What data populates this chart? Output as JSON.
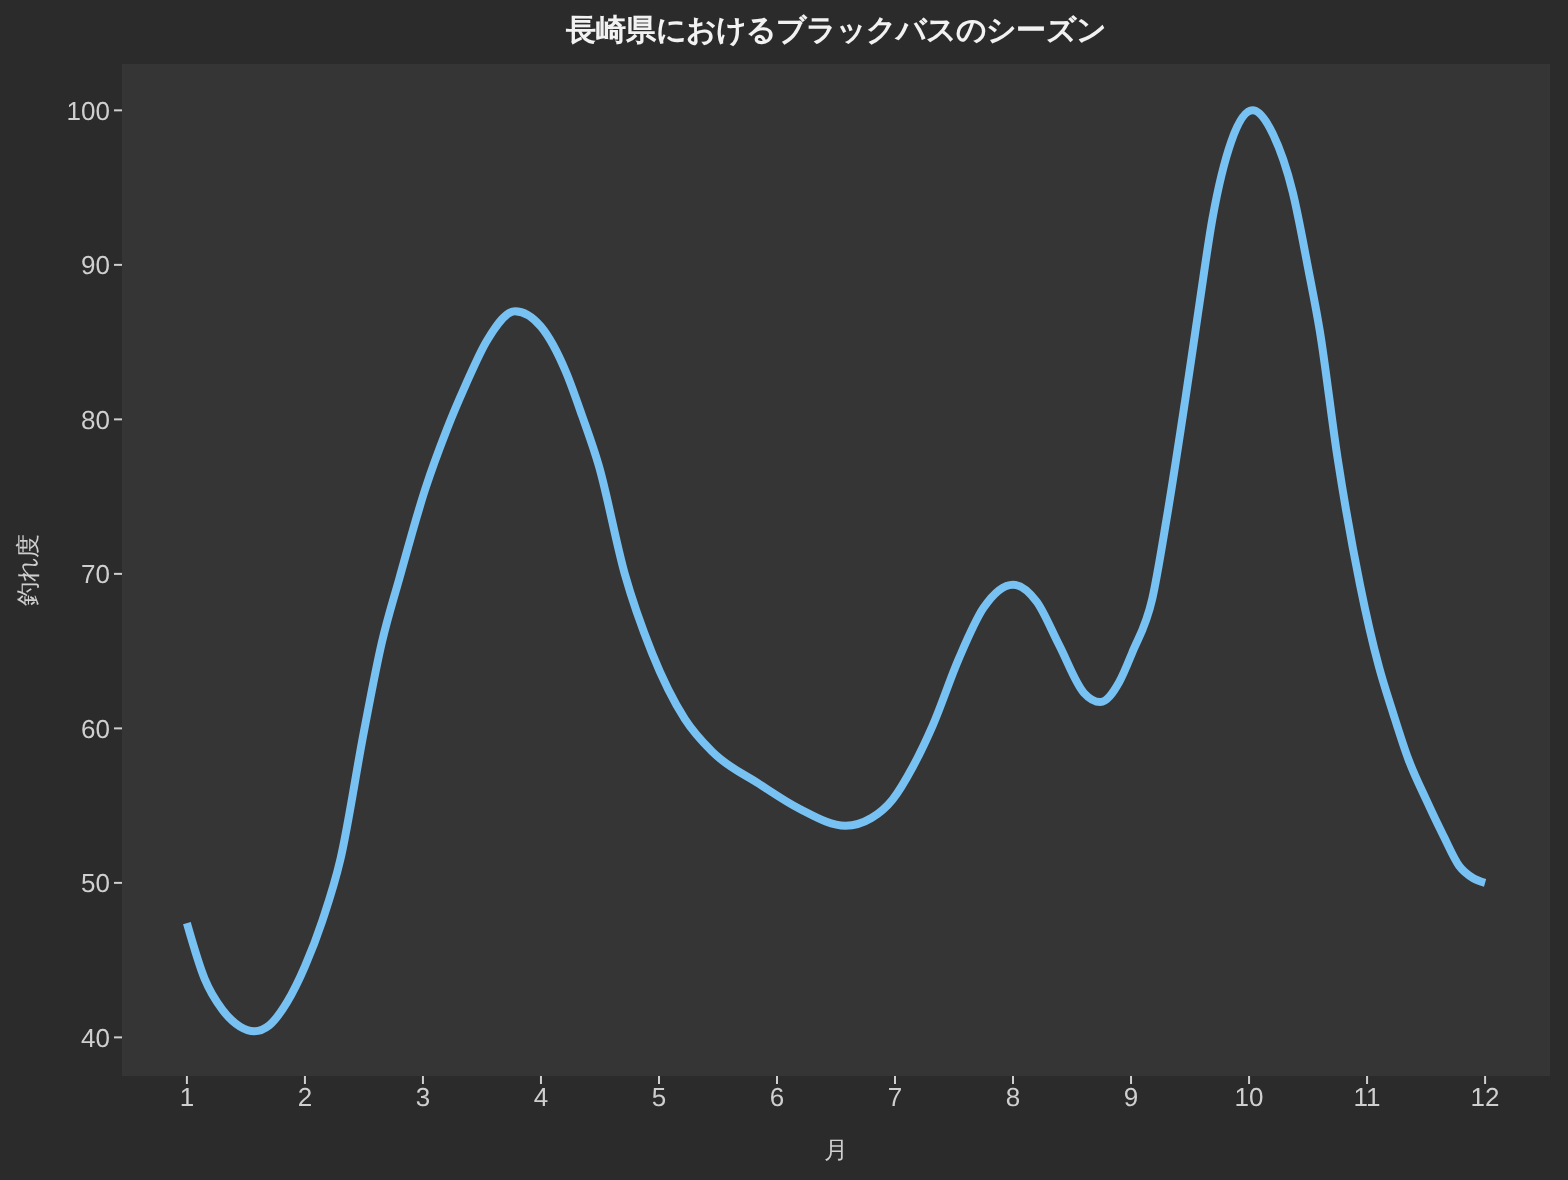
{
  "chart_data": {
    "type": "line",
    "title": "長崎県におけるブラックバスのシーズン",
    "xlabel": "月",
    "ylabel": "釣れ度",
    "x": [
      1.0,
      1.15,
      1.3,
      1.45,
      1.57,
      1.7,
      1.85,
      2.0,
      2.15,
      2.3,
      2.5,
      2.65,
      2.8,
      3.02,
      3.2,
      3.36,
      3.55,
      3.78,
      4.0,
      4.21,
      4.35,
      4.49,
      4.71,
      4.94,
      5.22,
      5.45,
      5.85,
      6.19,
      6.58,
      6.8,
      6.98,
      7.15,
      7.32,
      7.54,
      7.75,
      8.0,
      8.2,
      8.39,
      8.6,
      8.74,
      8.9,
      9.01,
      9.18,
      9.3,
      9.46,
      9.58,
      9.69,
      9.85,
      10.03,
      10.2,
      10.37,
      10.5,
      10.6,
      10.75,
      10.94,
      11.1,
      11.22,
      11.35,
      11.5,
      11.65,
      11.78,
      11.9,
      12.0
    ],
    "series": [
      {
        "color": "#78c1f3",
        "values": [
          47.4,
          43.8,
          41.8,
          40.7,
          40.4,
          40.8,
          42.3,
          44.6,
          47.6,
          51.5,
          59.8,
          65.5,
          69.7,
          75.5,
          79.3,
          82.2,
          85.2,
          87.0,
          86.0,
          83.1,
          80.2,
          77.0,
          70.0,
          64.9,
          60.6,
          58.5,
          56.4,
          54.8,
          53.7,
          54.2,
          55.4,
          57.5,
          60.2,
          64.5,
          67.8,
          69.3,
          68.2,
          65.4,
          62.3,
          61.7,
          63.0,
          64.9,
          68.4,
          73.5,
          81.3,
          87.5,
          93.0,
          98.0,
          100.0,
          98.5,
          94.7,
          89.8,
          85.7,
          77.5,
          69.3,
          64.0,
          61.0,
          58.0,
          55.4,
          53.0,
          51.1,
          50.3,
          50.0
        ]
      }
    ],
    "xlim": [
      0.45,
      12.55
    ],
    "ylim": [
      37.5,
      103
    ],
    "xticks": [
      1,
      2,
      3,
      4,
      5,
      6,
      7,
      8,
      9,
      10,
      11,
      12
    ],
    "yticks": [
      40,
      50,
      60,
      70,
      80,
      90,
      100
    ],
    "marker": "none",
    "line_style": "solid"
  }
}
